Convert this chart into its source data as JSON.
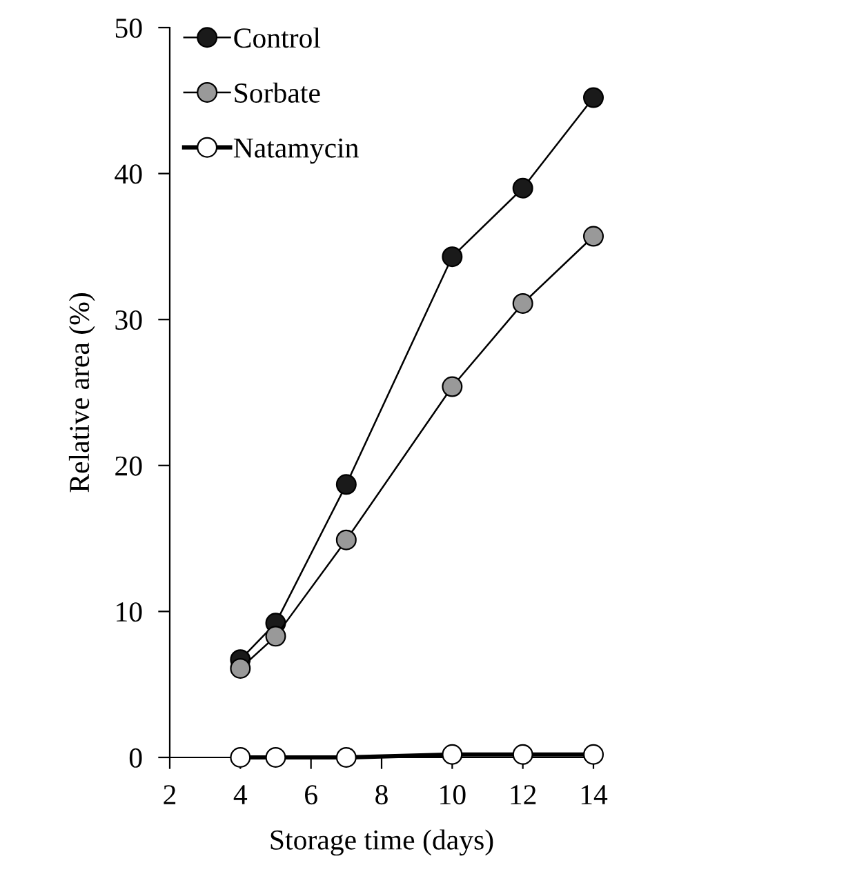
{
  "chart_data": {
    "type": "line",
    "xlabel": "Storage time (days)",
    "ylabel": "Relative area (%)",
    "x": [
      4,
      5,
      7,
      10,
      12,
      14
    ],
    "series": [
      {
        "name": "Control",
        "color": "#1a1a1a",
        "values": [
          6.7,
          9.2,
          18.7,
          34.3,
          39.0,
          45.2
        ]
      },
      {
        "name": "Sorbate",
        "color": "#999999",
        "values": [
          6.1,
          8.3,
          14.9,
          25.4,
          31.1,
          35.7
        ]
      },
      {
        "name": "Natamycin",
        "color": "#ffffff",
        "values": [
          0,
          0,
          0,
          0.2,
          0.2,
          0.2
        ]
      }
    ],
    "xlim": [
      2,
      14
    ],
    "xticks": [
      2,
      4,
      6,
      8,
      10,
      12,
      14
    ],
    "ylim": [
      0,
      50
    ],
    "yticks": [
      0,
      10,
      20,
      30,
      40,
      50
    ],
    "grid": false,
    "legend": "top left",
    "marker": "circle",
    "line_style": "solid"
  }
}
